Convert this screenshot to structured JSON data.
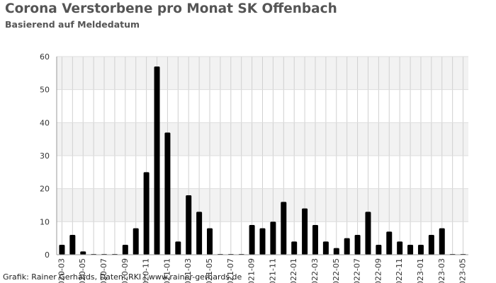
{
  "header": {
    "title": "Corona Verstorbene pro Monat SK Offenbach",
    "subtitle": "Basierend auf Meldedatum"
  },
  "footer": {
    "credit": "Grafik: Rainer Gerhards, Daten: RKI | www.rainer-gerhards.de"
  },
  "chart_data": {
    "type": "bar",
    "title": "Corona Verstorbene pro Monat SK Offenbach",
    "subtitle": "Basierend auf Meldedatum",
    "xlabel": "",
    "ylabel": "",
    "ylim": [
      0,
      60
    ],
    "yticks": [
      0,
      10,
      20,
      30,
      40,
      50,
      60
    ],
    "grid": true,
    "legend": "none",
    "bar_color": "#000000",
    "categories": [
      "2020-03",
      "2020-04",
      "2020-05",
      "2020-06",
      "2020-07",
      "2020-08",
      "2020-09",
      "2020-10",
      "2020-11",
      "2020-12",
      "2021-01",
      "2021-02",
      "2021-03",
      "2021-04",
      "2021-05",
      "2021-06",
      "2021-07",
      "2021-08",
      "2021-09",
      "2021-10",
      "2021-11",
      "2021-12",
      "2022-01",
      "2022-02",
      "2022-03",
      "2022-04",
      "2022-05",
      "2022-06",
      "2022-07",
      "2022-08",
      "2022-09",
      "2022-10",
      "2022-11",
      "2022-12",
      "2023-01",
      "2023-02",
      "2023-03",
      "2023-04",
      "2023-05"
    ],
    "values": [
      3,
      6,
      1,
      0,
      0,
      0,
      3,
      8,
      25,
      57,
      37,
      4,
      18,
      13,
      8,
      0,
      0,
      0,
      9,
      8,
      10,
      16,
      4,
      14,
      9,
      4,
      2,
      5,
      6,
      13,
      3,
      7,
      4,
      3,
      3,
      6,
      8,
      0,
      0
    ],
    "visible_x_labels": [
      "2020-03",
      "2020-05",
      "2020-07",
      "2020-09",
      "2020-11",
      "2021-01",
      "2021-03",
      "2021-05",
      "2021-07",
      "2021-09",
      "2021-11",
      "2022-01",
      "2022-03",
      "2022-05",
      "2022-07",
      "2022-09",
      "2022-11",
      "2023-01",
      "2023-03",
      "2023-05"
    ]
  }
}
